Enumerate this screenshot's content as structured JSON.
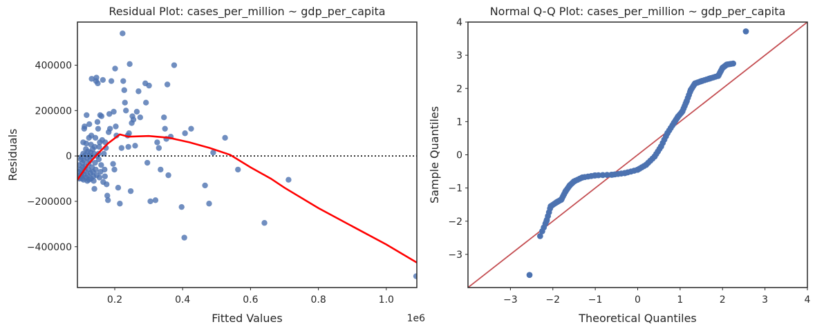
{
  "chart_data": [
    {
      "type": "scatter",
      "title": "Residual Plot: cases_per_million ~ gdp_per_capita",
      "xlabel": "Fitted Values",
      "ylabel": "Residuals",
      "x_scale_note": "1e6",
      "xlim": [
        90000,
        1090000
      ],
      "ylim": [
        -580000,
        590000
      ],
      "xticks": [
        200000,
        400000,
        600000,
        800000,
        1000000
      ],
      "xtick_labels": [
        "0.2",
        "0.4",
        "0.6",
        "0.8",
        "1.0"
      ],
      "yticks": [
        -400000,
        -200000,
        0,
        200000,
        400000
      ],
      "ytick_labels": [
        "−400000",
        "−200000",
        "0",
        "200000",
        "400000"
      ],
      "reference_line": {
        "y": 0,
        "style": "dotted",
        "color": "#000000"
      },
      "point_color": "#4c72b0",
      "series": [
        {
          "kind": "points",
          "points": [
            [
              92000,
              -95000
            ],
            [
              94000,
              -70000
            ],
            [
              95000,
              -40000
            ],
            [
              96000,
              -100000
            ],
            [
              98000,
              -85000
            ],
            [
              99000,
              -60000
            ],
            [
              100000,
              -15000
            ],
            [
              101000,
              -5000
            ],
            [
              102000,
              -90000
            ],
            [
              103000,
              -75000
            ],
            [
              104000,
              -100000
            ],
            [
              105000,
              -30000
            ],
            [
              106000,
              -50000
            ],
            [
              107000,
              10000
            ],
            [
              107000,
              60000
            ],
            [
              108000,
              -105000
            ],
            [
              109000,
              -80000
            ],
            [
              110000,
              -20000
            ],
            [
              110000,
              120000
            ],
            [
              111000,
              130000
            ],
            [
              112000,
              -65000
            ],
            [
              113000,
              -45000
            ],
            [
              114000,
              5000
            ],
            [
              115000,
              30000
            ],
            [
              116000,
              55000
            ],
            [
              116000,
              -95000
            ],
            [
              117000,
              180000
            ],
            [
              118000,
              -10000
            ],
            [
              119000,
              -110000
            ],
            [
              120000,
              -85000
            ],
            [
              121000,
              20000
            ],
            [
              122000,
              -60000
            ],
            [
              123000,
              -35000
            ],
            [
              124000,
              80000
            ],
            [
              124000,
              -105000
            ],
            [
              125000,
              140000
            ],
            [
              126000,
              0
            ],
            [
              127000,
              -20000
            ],
            [
              128000,
              -75000
            ],
            [
              129000,
              15000
            ],
            [
              130000,
              50000
            ],
            [
              130000,
              -100000
            ],
            [
              131000,
              90000
            ],
            [
              132000,
              340000
            ],
            [
              133000,
              -50000
            ],
            [
              134000,
              -5000
            ],
            [
              135000,
              30000
            ],
            [
              136000,
              -70000
            ],
            [
              137000,
              -90000
            ],
            [
              138000,
              -110000
            ],
            [
              139000,
              10000
            ],
            [
              140000,
              -145000
            ],
            [
              141000,
              40000
            ],
            [
              142000,
              -30000
            ],
            [
              143000,
              80000
            ],
            [
              144000,
              -60000
            ],
            [
              145000,
              330000
            ],
            [
              146000,
              345000
            ],
            [
              147000,
              -85000
            ],
            [
              148000,
              0
            ],
            [
              149000,
              150000
            ],
            [
              150000,
              320000
            ],
            [
              151000,
              120000
            ],
            [
              152000,
              10000
            ],
            [
              153000,
              -15000
            ],
            [
              154000,
              40000
            ],
            [
              155000,
              -95000
            ],
            [
              156000,
              60000
            ],
            [
              157000,
              180000
            ],
            [
              158000,
              -70000
            ],
            [
              160000,
              -40000
            ],
            [
              161000,
              175000
            ],
            [
              163000,
              70000
            ],
            [
              165000,
              335000
            ],
            [
              166000,
              -115000
            ],
            [
              168000,
              10000
            ],
            [
              170000,
              -60000
            ],
            [
              171000,
              -90000
            ],
            [
              172000,
              60000
            ],
            [
              174000,
              35000
            ],
            [
              176000,
              -125000
            ],
            [
              178000,
              -175000
            ],
            [
              180000,
              -195000
            ],
            [
              182000,
              105000
            ],
            [
              184000,
              185000
            ],
            [
              186000,
              120000
            ],
            [
              190000,
              330000
            ],
            [
              195000,
              -35000
            ],
            [
              197000,
              195000
            ],
            [
              199000,
              -60000
            ],
            [
              201000,
              385000
            ],
            [
              203000,
              130000
            ],
            [
              205000,
              90000
            ],
            [
              210000,
              -140000
            ],
            [
              215000,
              -210000
            ],
            [
              220000,
              35000
            ],
            [
              223000,
              540000
            ],
            [
              225000,
              330000
            ],
            [
              228000,
              290000
            ],
            [
              230000,
              235000
            ],
            [
              233000,
              200000
            ],
            [
              238000,
              90000
            ],
            [
              240000,
              40000
            ],
            [
              242000,
              100000
            ],
            [
              244000,
              405000
            ],
            [
              247000,
              -155000
            ],
            [
              250000,
              145000
            ],
            [
              252000,
              175000
            ],
            [
              255000,
              160000
            ],
            [
              260000,
              45000
            ],
            [
              265000,
              195000
            ],
            [
              270000,
              285000
            ],
            [
              275000,
              170000
            ],
            [
              290000,
              320000
            ],
            [
              292000,
              235000
            ],
            [
              296000,
              -30000
            ],
            [
              301000,
              310000
            ],
            [
              305000,
              -200000
            ],
            [
              320000,
              -195000
            ],
            [
              325000,
              60000
            ],
            [
              330000,
              35000
            ],
            [
              335000,
              -60000
            ],
            [
              345000,
              170000
            ],
            [
              348000,
              120000
            ],
            [
              352000,
              75000
            ],
            [
              355000,
              315000
            ],
            [
              358000,
              -85000
            ],
            [
              365000,
              85000
            ],
            [
              375000,
              400000
            ],
            [
              397000,
              -225000
            ],
            [
              405000,
              -360000
            ],
            [
              407000,
              100000
            ],
            [
              425000,
              120000
            ],
            [
              466000,
              -130000
            ],
            [
              478000,
              -210000
            ],
            [
              490000,
              15000
            ],
            [
              525000,
              80000
            ],
            [
              563000,
              -60000
            ],
            [
              641000,
              -295000
            ],
            [
              712000,
              -105000
            ],
            [
              1088000,
              -530000
            ]
          ]
        },
        {
          "kind": "lowess",
          "color": "#ff0000",
          "points": [
            [
              90000,
              -105000
            ],
            [
              120000,
              -40000
            ],
            [
              150000,
              10000
            ],
            [
              180000,
              55000
            ],
            [
              215000,
              95000
            ],
            [
              240000,
              85000
            ],
            [
              300000,
              88000
            ],
            [
              360000,
              80000
            ],
            [
              420000,
              60000
            ],
            [
              480000,
              35000
            ],
            [
              540000,
              5000
            ],
            [
              600000,
              -50000
            ],
            [
              660000,
              -100000
            ],
            [
              700000,
              -140000
            ],
            [
              800000,
              -230000
            ],
            [
              900000,
              -310000
            ],
            [
              1000000,
              -390000
            ],
            [
              1090000,
              -470000
            ]
          ]
        }
      ]
    },
    {
      "type": "scatter",
      "title": "Normal Q-Q Plot: cases_per_million ~ gdp_per_capita",
      "xlabel": "Theoretical Quantiles",
      "ylabel": "Sample Quantiles",
      "xlim": [
        -4,
        4
      ],
      "ylim": [
        -4,
        4
      ],
      "xticks": [
        -3,
        -2,
        -1,
        0,
        1,
        2,
        3,
        4
      ],
      "xtick_labels": [
        "−3",
        "−2",
        "−1",
        "0",
        "1",
        "2",
        "3",
        "4"
      ],
      "yticks": [
        -3,
        -2,
        -1,
        0,
        1,
        2,
        3,
        4
      ],
      "ytick_labels": [
        "−3",
        "−2",
        "−1",
        "0",
        "1",
        "2",
        "3",
        "4"
      ],
      "reference_line": {
        "slope": 1,
        "intercept": 0,
        "color": "#c44e52"
      },
      "point_color": "#4c72b0",
      "anchors": [
        [
          -2.55,
          -3.62
        ],
        [
          -2.3,
          -2.45
        ],
        [
          -2.15,
          -2.0
        ],
        [
          -2.05,
          -1.55
        ],
        [
          -1.9,
          -1.42
        ],
        [
          -1.8,
          -1.35
        ],
        [
          -1.7,
          -1.1
        ],
        [
          -1.6,
          -0.92
        ],
        [
          -1.5,
          -0.8
        ],
        [
          -1.3,
          -0.68
        ],
        [
          -1.0,
          -0.62
        ],
        [
          -0.6,
          -0.6
        ],
        [
          -0.3,
          -0.55
        ],
        [
          0.0,
          -0.45
        ],
        [
          0.2,
          -0.3
        ],
        [
          0.4,
          -0.05
        ],
        [
          0.55,
          0.25
        ],
        [
          0.7,
          0.65
        ],
        [
          0.85,
          0.95
        ],
        [
          0.95,
          1.15
        ],
        [
          1.05,
          1.3
        ],
        [
          1.15,
          1.6
        ],
        [
          1.25,
          1.95
        ],
        [
          1.35,
          2.15
        ],
        [
          1.5,
          2.22
        ],
        [
          1.7,
          2.3
        ],
        [
          1.9,
          2.38
        ],
        [
          2.0,
          2.62
        ],
        [
          2.1,
          2.72
        ],
        [
          2.25,
          2.75
        ],
        [
          2.55,
          3.72
        ]
      ],
      "n_points": 140
    }
  ]
}
